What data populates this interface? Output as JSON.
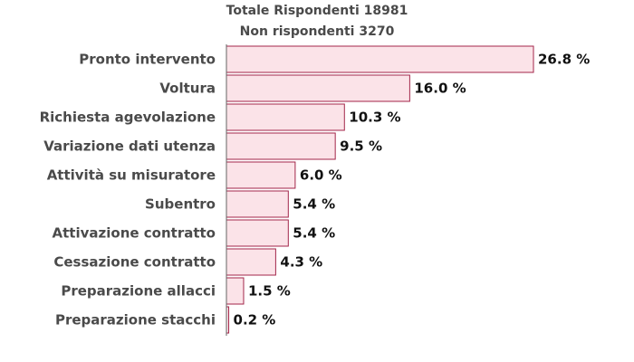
{
  "title_lines": [
    "Totale Rispondenti 18981",
    "Non rispondenti 3270"
  ],
  "colors": {
    "bar_fill": "#fbe3e8",
    "bar_stroke": "#a3264a",
    "axis": "#666666",
    "label_text": "#4a4a4a",
    "value_text": "#111111"
  },
  "chart_data": {
    "type": "bar",
    "orientation": "horizontal",
    "title": "Totale Rispondenti 18981",
    "subtitle": "Non rispondenti 3270",
    "categories": [
      "Pronto intervento",
      "Voltura",
      "Richiesta agevolazione",
      "Variazione dati utenza",
      "Attività su misuratore",
      "Subentro",
      "Attivazione contratto",
      "Cessazione contratto",
      "Preparazione allacci",
      "Preparazione stacchi"
    ],
    "values": [
      26.8,
      16.0,
      10.3,
      9.5,
      6.0,
      5.4,
      5.4,
      4.3,
      1.5,
      0.2
    ],
    "value_labels": [
      "26.8 %",
      "16.0 %",
      "10.3 %",
      "9.5 %",
      "6.0 %",
      "5.4 %",
      "5.4 %",
      "4.3 %",
      "1.5 %",
      "0.2 %"
    ],
    "unit": "%",
    "xlabel": "",
    "ylabel": "",
    "grid": false,
    "legend": false
  }
}
